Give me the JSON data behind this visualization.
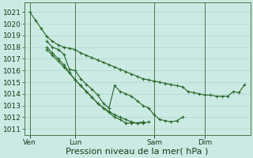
{
  "bg_color": "#cceae4",
  "grid_color": "#b0d4cc",
  "line_color": "#2d6b2d",
  "marker_color": "#2d6b2d",
  "xlabel": "Pression niveau de la mer( hPa )",
  "ylim": [
    1010.5,
    1021.8
  ],
  "yticks": [
    1011,
    1012,
    1013,
    1014,
    1015,
    1016,
    1017,
    1018,
    1019,
    1020,
    1021
  ],
  "xtick_labels": [
    "Ven",
    "Lun",
    "Sam",
    "Dim"
  ],
  "xtick_positions": [
    0,
    8,
    22,
    31
  ],
  "xlim": [
    -1,
    39
  ],
  "series": [
    {
      "x": [
        0,
        1,
        2,
        3,
        4,
        5,
        6,
        7,
        8,
        9,
        10,
        11,
        12,
        13,
        14,
        15,
        16,
        17,
        18,
        19,
        20,
        21,
        22,
        23,
        24,
        25,
        26,
        27,
        28,
        29,
        30,
        31,
        32,
        33,
        34,
        35,
        36,
        37,
        38
      ],
      "y": [
        1021.0,
        1020.3,
        1019.6,
        1018.9,
        1018.5,
        1018.2,
        1018.0,
        1017.9,
        1017.8,
        1017.5,
        1017.3,
        1017.1,
        1016.9,
        1016.7,
        1016.5,
        1016.3,
        1016.1,
        1015.9,
        1015.7,
        1015.5,
        1015.3,
        1015.2,
        1015.1,
        1015.0,
        1014.9,
        1014.8,
        1014.7,
        1014.6,
        1014.2,
        1014.1,
        1014.0,
        1013.9,
        1013.9,
        1013.8,
        1013.8,
        1013.8,
        1014.2,
        1014.1,
        1014.8
      ]
    },
    {
      "x": [
        3,
        4,
        5,
        6,
        7,
        8,
        9,
        10,
        11,
        12,
        13,
        14,
        15,
        16,
        17,
        18,
        19,
        20,
        21,
        22,
        23,
        24,
        25,
        26,
        27
      ],
      "y": [
        1018.5,
        1018.0,
        1017.8,
        1017.4,
        1016.1,
        1016.0,
        1015.3,
        1014.8,
        1014.4,
        1013.9,
        1013.2,
        1012.8,
        1014.7,
        1014.2,
        1014.0,
        1013.8,
        1013.4,
        1013.0,
        1012.8,
        1012.2,
        1011.8,
        1011.7,
        1011.6,
        1011.7,
        1012.0
      ]
    },
    {
      "x": [
        3,
        4,
        5,
        6,
        7,
        8,
        9,
        10,
        11,
        12,
        13,
        14,
        15,
        16,
        17,
        18,
        19,
        20,
        21,
        22,
        23,
        24,
        25
      ],
      "y": [
        1018.0,
        1017.5,
        1017.0,
        1016.5,
        1015.8,
        1015.2,
        1014.7,
        1014.2,
        1013.7,
        1013.2,
        1012.8,
        1012.5,
        1012.2,
        1012.0,
        1011.8,
        1011.6,
        1011.5,
        1011.5,
        1011.6,
        null,
        null,
        null,
        null
      ]
    },
    {
      "x": [
        3,
        4,
        5,
        6,
        7,
        8,
        9,
        10,
        11,
        12,
        13,
        14,
        15,
        16,
        17,
        18,
        19,
        20,
        21,
        22,
        23,
        24,
        25
      ],
      "y": [
        1017.8,
        1017.3,
        1016.8,
        1016.3,
        1015.8,
        1015.2,
        1014.7,
        1014.2,
        1013.7,
        1013.2,
        1012.8,
        1012.4,
        1012.0,
        1011.8,
        1011.5,
        1011.5,
        1011.5,
        1011.6,
        null,
        null,
        null,
        null,
        null
      ]
    }
  ],
  "xlabel_fontsize": 8,
  "tick_fontsize": 6.5
}
